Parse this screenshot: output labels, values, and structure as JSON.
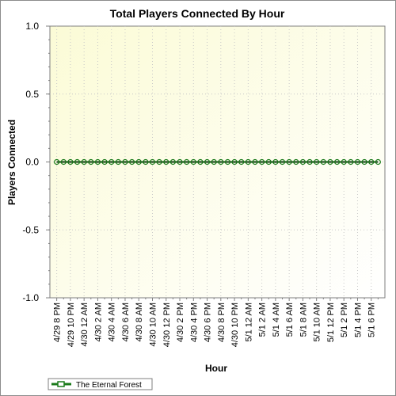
{
  "chart_data": {
    "type": "line",
    "title": "Total Players Connected By Hour",
    "xlabel": "Hour",
    "ylabel": "Players Connected",
    "ylim": [
      -1.0,
      1.0
    ],
    "yticks": [
      "1.0",
      "0.5",
      "0.0",
      "-0.5",
      "-1.0"
    ],
    "ytick_values": [
      1.0,
      0.5,
      0.0,
      -0.5,
      -1.0
    ],
    "x_tick_labels": [
      "4/29 8 PM",
      "4/29 10 PM",
      "4/30 12 AM",
      "4/30 2 AM",
      "4/30 4 AM",
      "4/30 6 AM",
      "4/30 8 AM",
      "4/30 10 AM",
      "4/30 12 PM",
      "4/30 2 PM",
      "4/30 4 PM",
      "4/30 6 PM",
      "4/30 8 PM",
      "4/30 10 PM",
      "5/1 12 AM",
      "5/1 2 AM",
      "5/1 4 AM",
      "5/1 6 AM",
      "5/1 8 AM",
      "5/1 10 AM",
      "5/1 12 PM",
      "5/1 2 PM",
      "5/1 4 PM",
      "5/1 6 PM"
    ],
    "x_range_hours": [
      -1,
      48
    ],
    "grid": true,
    "legend_position": "bottom-left",
    "series": [
      {
        "name": "The Eternal Forest",
        "color": "#1a7a1a",
        "x_hours": [
          0,
          1,
          2,
          3,
          4,
          5,
          6,
          7,
          8,
          9,
          10,
          11,
          12,
          13,
          14,
          15,
          16,
          17,
          18,
          19,
          20,
          21,
          22,
          23,
          24,
          25,
          26,
          27,
          28,
          29,
          30,
          31,
          32,
          33,
          34,
          35,
          36,
          37,
          38,
          39,
          40,
          41,
          42,
          43,
          44,
          45,
          46,
          47
        ],
        "values": [
          0,
          0,
          0,
          0,
          0,
          0,
          0,
          0,
          0,
          0,
          0,
          0,
          0,
          0,
          0,
          0,
          0,
          0,
          0,
          0,
          0,
          0,
          0,
          0,
          0,
          0,
          0,
          0,
          0,
          0,
          0,
          0,
          0,
          0,
          0,
          0,
          0,
          0,
          0,
          0,
          0,
          0,
          0,
          0,
          0,
          0,
          0,
          0
        ]
      }
    ]
  }
}
